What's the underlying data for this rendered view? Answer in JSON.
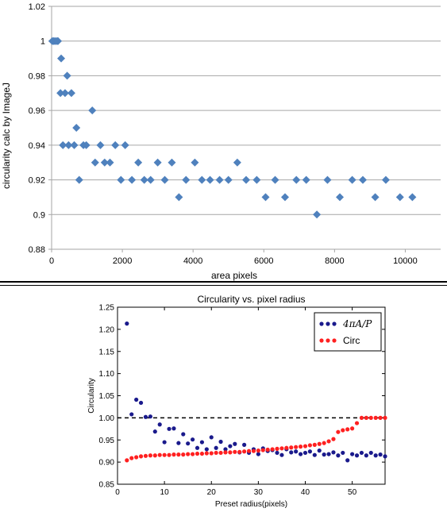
{
  "chart_data": [
    {
      "type": "scatter",
      "title": "",
      "xlabel": "area pixels",
      "ylabel": "circularity calc by ImageJ",
      "xlim": [
        0,
        11000
      ],
      "ylim": [
        0.88,
        1.02
      ],
      "xticks": [
        "0",
        "2000",
        "4000",
        "6000",
        "8000",
        "10000"
      ],
      "yticks": [
        "0.88",
        "0.9",
        "0.92",
        "0.94",
        "0.96",
        "0.98",
        "1",
        "1.02"
      ],
      "grid": "horizontal",
      "marker": "diamond",
      "color": "#4f81bd",
      "series": [
        {
          "x": [
            20,
            60,
            100,
            150,
            180,
            250,
            270,
            320,
            380,
            440,
            480,
            560,
            640,
            700,
            780,
            900,
            980,
            1150,
            1230,
            1380,
            1500,
            1650,
            1800,
            1960,
            2080,
            2270,
            2450,
            2620,
            2800,
            3000,
            3200,
            3400,
            3600,
            3800,
            4050,
            4250,
            4480,
            4750,
            5000,
            5250,
            5500,
            5800,
            6050,
            6320,
            6600,
            6920,
            7200,
            7500,
            7800,
            8150,
            8500,
            8800,
            9150,
            9450,
            9850,
            10200
          ],
          "y": [
            1.0,
            1.0,
            1.0,
            1.0,
            1.0,
            0.97,
            0.99,
            0.94,
            0.97,
            0.98,
            0.94,
            0.97,
            0.94,
            0.95,
            0.92,
            0.94,
            0.94,
            0.96,
            0.93,
            0.94,
            0.93,
            0.93,
            0.94,
            0.92,
            0.94,
            0.92,
            0.93,
            0.92,
            0.92,
            0.93,
            0.92,
            0.93,
            0.91,
            0.92,
            0.93,
            0.92,
            0.92,
            0.92,
            0.92,
            0.93,
            0.92,
            0.92,
            0.91,
            0.92,
            0.91,
            0.92,
            0.92,
            0.9,
            0.92,
            0.91,
            0.92,
            0.92,
            0.91,
            0.92,
            0.91,
            0.91
          ]
        }
      ]
    },
    {
      "type": "scatter",
      "title": "Circularity vs. pixel radius",
      "xlabel": "Preset radius(pixels)",
      "ylabel": "Circularity",
      "xlim": [
        0,
        57
      ],
      "ylim": [
        0.85,
        1.25
      ],
      "xticks": [
        "0",
        "10",
        "20",
        "30",
        "40",
        "50"
      ],
      "yticks": [
        "0.85",
        "0.90",
        "0.95",
        "1.00",
        "1.05",
        "1.10",
        "1.15",
        "1.20",
        "1.25"
      ],
      "legend_position": "top-right",
      "reference_line": {
        "y": 1.0,
        "style": "dashed",
        "color": "#000000"
      },
      "series": [
        {
          "name": "4πA/P",
          "color": "#1a1a8c",
          "x": [
            2,
            3,
            4,
            5,
            6,
            7,
            8,
            9,
            10,
            11,
            12,
            13,
            14,
            15,
            16,
            17,
            18,
            19,
            20,
            21,
            22,
            23,
            24,
            25,
            26,
            27,
            28,
            29,
            30,
            31,
            32,
            33,
            34,
            35,
            36,
            37,
            38,
            39,
            40,
            41,
            42,
            43,
            44,
            45,
            46,
            47,
            48,
            49,
            50,
            51,
            52,
            53,
            54,
            55,
            56,
            57
          ],
          "y": [
            1.213,
            1.008,
            1.041,
            1.034,
            1.002,
            1.003,
            0.969,
            0.985,
            0.945,
            0.975,
            0.976,
            0.943,
            0.963,
            0.942,
            0.951,
            0.932,
            0.945,
            0.929,
            0.956,
            0.932,
            0.946,
            0.929,
            0.936,
            0.941,
            0.922,
            0.939,
            0.921,
            0.929,
            0.918,
            0.931,
            0.925,
            0.927,
            0.921,
            0.916,
            0.929,
            0.922,
            0.924,
            0.918,
            0.921,
            0.924,
            0.916,
            0.926,
            0.917,
            0.918,
            0.922,
            0.915,
            0.921,
            0.904,
            0.918,
            0.915,
            0.921,
            0.915,
            0.921,
            0.915,
            0.917,
            0.913
          ]
        },
        {
          "name": "Circ",
          "color": "#ff2020",
          "x": [
            2,
            3,
            4,
            5,
            6,
            7,
            8,
            9,
            10,
            11,
            12,
            13,
            14,
            15,
            16,
            17,
            18,
            19,
            20,
            21,
            22,
            23,
            24,
            25,
            26,
            27,
            28,
            29,
            30,
            31,
            32,
            33,
            34,
            35,
            36,
            37,
            38,
            39,
            40,
            41,
            42,
            43,
            44,
            45,
            46,
            47,
            48,
            49,
            50,
            51,
            52,
            53,
            54,
            55,
            56,
            57
          ],
          "y": [
            0.904,
            0.909,
            0.911,
            0.913,
            0.914,
            0.915,
            0.915,
            0.916,
            0.916,
            0.916,
            0.917,
            0.917,
            0.917,
            0.918,
            0.918,
            0.919,
            0.919,
            0.92,
            0.92,
            0.921,
            0.921,
            0.922,
            0.922,
            0.923,
            0.923,
            0.924,
            0.925,
            0.925,
            0.926,
            0.927,
            0.928,
            0.929,
            0.93,
            0.931,
            0.932,
            0.933,
            0.934,
            0.935,
            0.936,
            0.938,
            0.939,
            0.941,
            0.943,
            0.947,
            0.952,
            0.968,
            0.972,
            0.974,
            0.976,
            0.988,
            1.0,
            1.0,
            1.0,
            1.0,
            1.0,
            1.0
          ]
        }
      ]
    }
  ]
}
